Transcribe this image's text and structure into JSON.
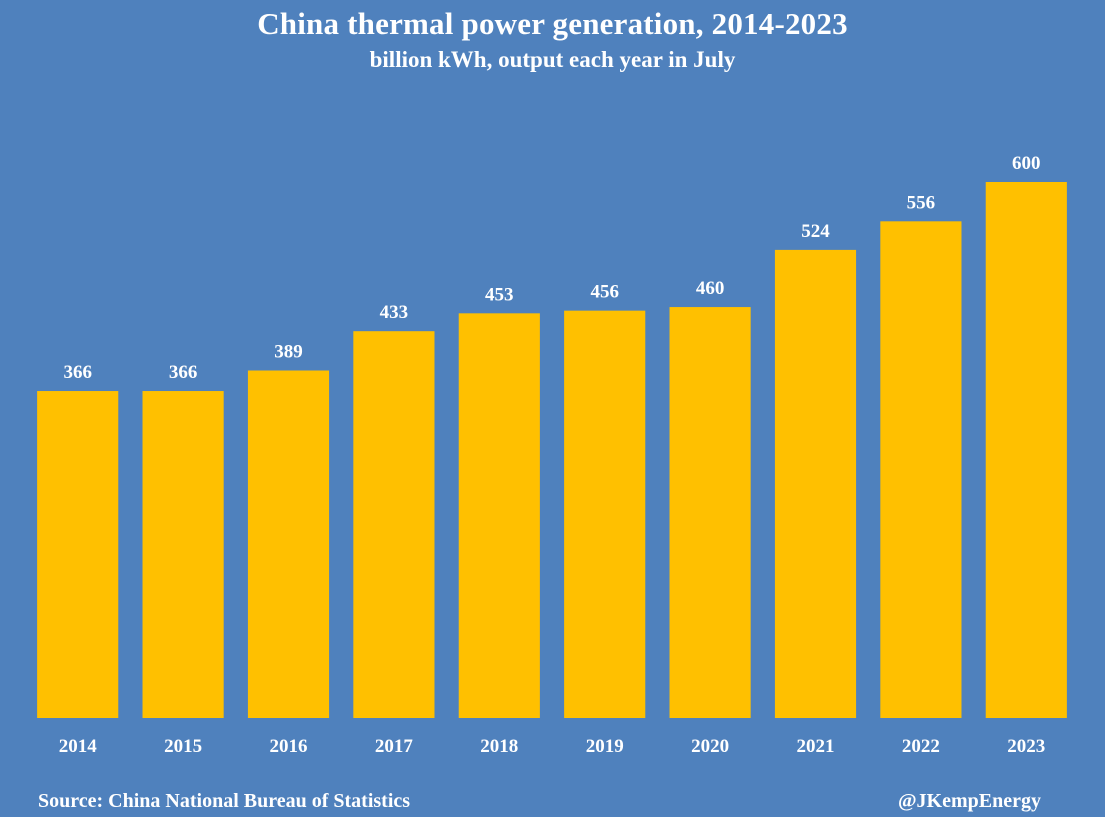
{
  "title": "China thermal power generation, 2014-2023",
  "subtitle": "billion kWh, output each year in July",
  "source": "Source: China National Bureau of Statistics",
  "credit": "@JKempEnergy",
  "colors": {
    "background": "#4f81bd",
    "bar": "#ffc000",
    "text": "#ffffff"
  },
  "chart_data": {
    "type": "bar",
    "title": "China thermal power generation, 2014-2023",
    "subtitle": "billion kWh, output each year in July",
    "categories": [
      "2014",
      "2015",
      "2016",
      "2017",
      "2018",
      "2019",
      "2020",
      "2021",
      "2022",
      "2023"
    ],
    "values": [
      366,
      366,
      389,
      433,
      453,
      456,
      460,
      524,
      556,
      600
    ],
    "value_labels": [
      "366",
      "366",
      "389",
      "433",
      "453",
      "456",
      "460",
      "524",
      "556",
      "600"
    ],
    "xlabel": "",
    "ylabel": "",
    "ylim": [
      0,
      600
    ],
    "grid": false,
    "legend": "none",
    "y_axis_shown": false
  }
}
